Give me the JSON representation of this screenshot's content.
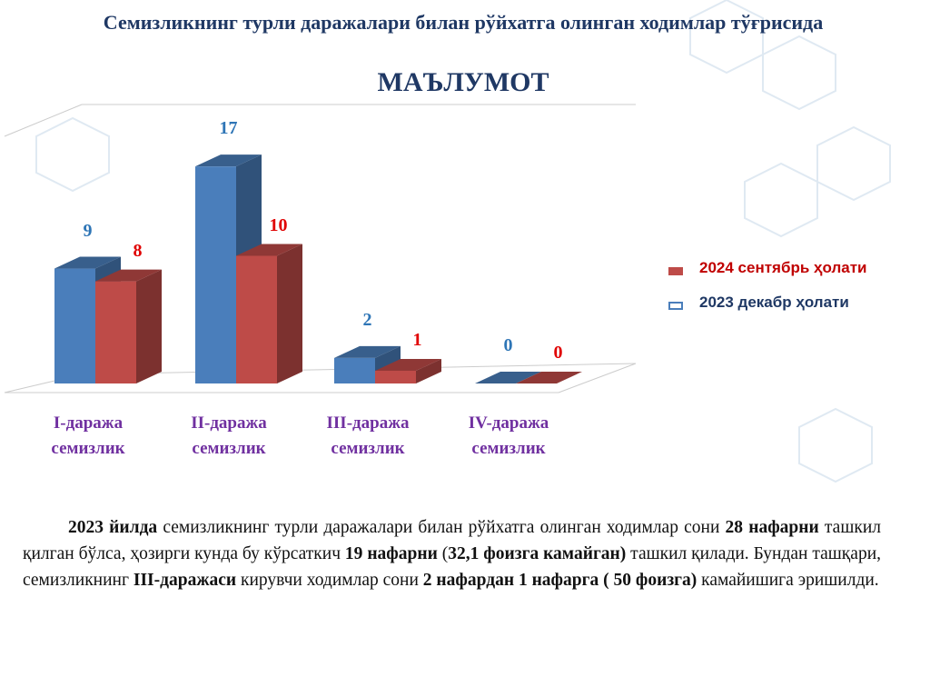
{
  "chart_data": {
    "type": "bar3d",
    "title": "Семизликнинг турли даражалари билан рўйхатга олинган ходимлар тўғрисида",
    "subtitle": "МАЪЛУМОТ",
    "categories": [
      "I-даража семизлик",
      "II-даража семизлик",
      "III-даража семизлик",
      "IV-даража семизлик"
    ],
    "series": [
      {
        "name": "2023 декабр ҳолати",
        "color": "#4a7ebb",
        "values": [
          9,
          17,
          2,
          0
        ]
      },
      {
        "name": "2024 сентябрь ҳолати",
        "color": "#be4b48",
        "values": [
          8,
          10,
          1,
          0
        ]
      }
    ],
    "ylim": [
      0,
      20
    ]
  },
  "paragraph": [
    {
      "text": "2023 йилда",
      "bold": true
    },
    {
      "text": " семизликнинг турли даражалари билан рўйхатга олинган ходимлар сони ",
      "bold": false
    },
    {
      "text": "28 нафарни",
      "bold": true
    },
    {
      "text": " ташкил қилган бўлса, ҳозирги кунда бу кўрсаткич ",
      "bold": false
    },
    {
      "text": "19 нафарни",
      "bold": true
    },
    {
      "text": " (",
      "bold": false
    },
    {
      "text": "32,1 фоизга камайган)",
      "bold": true
    },
    {
      "text": " ташкил қилади. Бундан ташқари, семизликнинг ",
      "bold": false
    },
    {
      "text": "III-даражаси",
      "bold": true
    },
    {
      "text": " кирувчи ходимлар сони ",
      "bold": false
    },
    {
      "text": "2 нафардан 1 нафарга ( 50 фоизга)",
      "bold": true
    },
    {
      "text": " камайишига эришилди.",
      "bold": false
    }
  ]
}
